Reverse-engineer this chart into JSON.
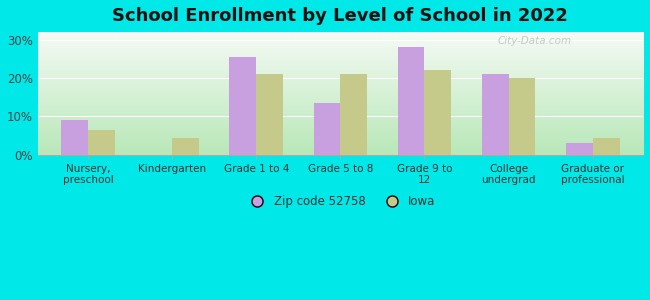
{
  "title": "School Enrollment by Level of School in 2022",
  "categories": [
    "Nursery,\npreschool",
    "Kindergarten",
    "Grade 1 to 4",
    "Grade 5 to 8",
    "Grade 9 to\n12",
    "College\nundergrad",
    "Graduate or\nprofessional"
  ],
  "zip_values": [
    9.0,
    0.0,
    25.5,
    13.5,
    28.0,
    21.0,
    3.0
  ],
  "iowa_values": [
    6.5,
    4.5,
    21.0,
    21.0,
    22.0,
    20.0,
    4.5
  ],
  "zip_color": "#c8a0e0",
  "iowa_color": "#c5c98a",
  "background_outer": "#00e8e8",
  "background_inner_top": "#f5faf5",
  "background_inner_bottom": "#b8e8b8",
  "ylim": [
    0,
    32
  ],
  "yticks": [
    0,
    10,
    20,
    30
  ],
  "yticklabels": [
    "0%",
    "10%",
    "20%",
    "30%"
  ],
  "zip_label": "Zip code 52758",
  "iowa_label": "Iowa",
  "title_fontsize": 13,
  "watermark": "City-Data.com",
  "bar_width": 0.32
}
